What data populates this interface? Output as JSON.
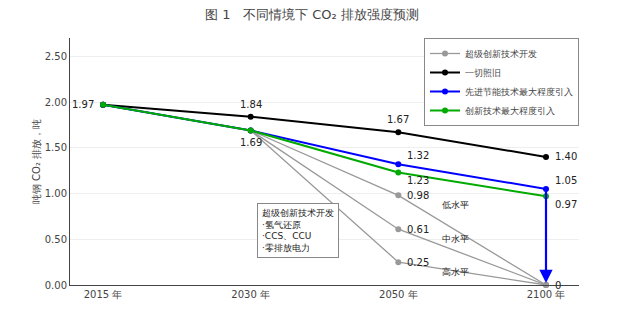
{
  "chart_data": {
    "type": "line",
    "title": "图 1   不同情境下 CO₂ 排放强度预测",
    "ylabel": "吨钢 CO₂ 排放，吨",
    "categories": [
      "2015 年",
      "2030 年",
      "2050 年",
      "2100 年"
    ],
    "series": [
      {
        "name": "一切照旧",
        "color": "#000000",
        "values": [
          1.97,
          1.84,
          1.67,
          1.4
        ],
        "value_labels": [
          "1.97",
          "1.84",
          "1.67",
          "1.40"
        ]
      },
      {
        "name": "先进节能技术最大程度引入",
        "color": "#0000FF",
        "values": [
          1.97,
          1.69,
          1.32,
          1.05
        ],
        "value_labels": [
          null,
          "1.69",
          "1.32",
          "1.05"
        ]
      },
      {
        "name": "创新技术最大程度引入",
        "color": "#00AA00",
        "values": [
          1.97,
          1.69,
          1.23,
          0.97
        ],
        "value_labels": [
          null,
          null,
          "1.23",
          "0.97"
        ]
      },
      {
        "name": "超级创新技术开发",
        "color": "#999999",
        "values": [
          1.97,
          1.69,
          0.98,
          0
        ],
        "value_labels": [
          null,
          null,
          "0.98",
          "0"
        ]
      },
      {
        "name": "超级创新技术开发",
        "color": "#999999",
        "values": [
          1.97,
          1.69,
          0.61,
          0
        ],
        "value_labels": [
          null,
          null,
          "0.61",
          null
        ]
      },
      {
        "name": "超级创新技术开发",
        "color": "#999999",
        "values": [
          1.97,
          1.69,
          0.25,
          0
        ],
        "value_labels": [
          null,
          null,
          "0.25",
          null
        ]
      }
    ],
    "annotations": [
      "超级创新技术开发\n·氢气还原\n·CCS、CCU\n·零排放电力",
      "低水平",
      "中水平",
      "高水平"
    ],
    "ylim": [
      0.0,
      2.7
    ],
    "yticks": [
      {
        "value": 0.0,
        "label": "0.00"
      },
      {
        "value": 0.5,
        "label": "0.50"
      },
      {
        "value": 1.0,
        "label": "1.00"
      },
      {
        "value": 1.5,
        "label": "1.50"
      },
      {
        "value": 2.0,
        "label": "2.00"
      },
      {
        "value": 2.5,
        "label": "2.50"
      }
    ],
    "grid": true,
    "legend": "upper right",
    "data_labels": true,
    "marker": "circle",
    "line_style": "solid"
  }
}
